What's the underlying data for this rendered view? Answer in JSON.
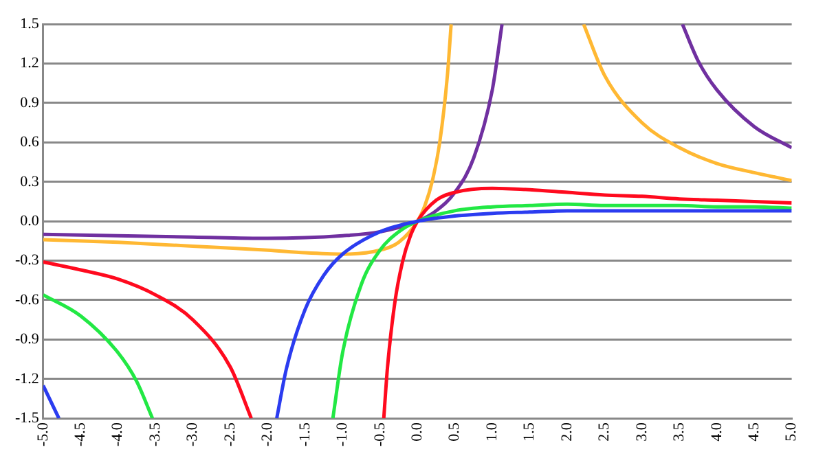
{
  "chart_data": {
    "type": "line",
    "series": [
      {
        "color": "#2b3cf0",
        "x": [
          -5,
          -4.79,
          null,
          -1.88,
          -1.75,
          -1.5,
          -1.25,
          -1,
          -0.5,
          0,
          0.5,
          1,
          1.5,
          2,
          2.5,
          3,
          3.5,
          4,
          4.5,
          5
        ],
        "values": [
          -1.25,
          -1.5,
          null,
          -1.5,
          -1.12,
          -0.67,
          -0.41,
          -0.25,
          -0.08,
          0,
          0.04,
          0.06,
          0.07,
          0.08,
          0.08,
          0.08,
          0.08,
          0.08,
          0.08,
          0.08
        ]
      },
      {
        "color": "#22e844",
        "x": [
          -5,
          -4.5,
          -4,
          -3.75,
          -3.54,
          null,
          -1.13,
          -1,
          -0.75,
          -0.5,
          -0.25,
          0,
          0.5,
          1,
          1.5,
          2,
          2.5,
          3,
          3.5,
          4,
          4.5,
          5
        ],
        "values": [
          -0.56,
          -0.72,
          -1,
          -1.22,
          -1.5,
          null,
          -1.5,
          -1,
          -0.48,
          -0.22,
          -0.08,
          0,
          0.08,
          0.11,
          0.12,
          0.13,
          0.12,
          0.12,
          0.12,
          0.11,
          0.11,
          0.1
        ]
      },
      {
        "color": "#ff0a1e",
        "x": [
          -5,
          -4.5,
          -4,
          -3.5,
          -3,
          -2.5,
          -2.22,
          null,
          -0.45,
          -0.4,
          -0.3,
          -0.2,
          -0.1,
          0,
          0.25,
          0.5,
          1,
          1.5,
          2,
          2.5,
          3,
          3.5,
          4,
          4.5,
          5
        ],
        "values": [
          -0.31,
          -0.37,
          -0.44,
          -0.56,
          -0.75,
          -1.11,
          -1.5,
          null,
          -1.5,
          -1.11,
          -0.61,
          -0.31,
          -0.12,
          0,
          0.16,
          0.22,
          0.25,
          0.24,
          0.22,
          0.2,
          0.19,
          0.17,
          0.16,
          0.15,
          0.14
        ]
      },
      {
        "color": "#ffb833",
        "x": [
          -5,
          -4,
          -3,
          -2,
          -1.5,
          -1,
          -0.5,
          -0.25,
          0,
          0.1,
          0.2,
          0.3,
          0.4,
          0.45,
          null,
          2.22,
          2.5,
          3,
          3.5,
          4,
          4.5,
          5
        ],
        "values": [
          -0.14,
          -0.16,
          -0.19,
          -0.22,
          -0.24,
          -0.25,
          -0.22,
          -0.16,
          0,
          0.12,
          0.31,
          0.61,
          1.11,
          1.5,
          null,
          1.5,
          1.11,
          0.75,
          0.56,
          0.44,
          0.37,
          0.31
        ]
      },
      {
        "color": "#7030a0",
        "x": [
          -5,
          -4,
          -3,
          -2,
          -1,
          -0.5,
          0,
          0.25,
          0.5,
          0.75,
          1,
          1.13,
          null,
          3.54,
          3.75,
          4,
          4.5,
          5
        ],
        "values": [
          -0.1,
          -0.11,
          -0.12,
          -0.13,
          -0.11,
          -0.08,
          0,
          0.08,
          0.22,
          0.48,
          1,
          1.5,
          null,
          1.5,
          1.22,
          1,
          0.72,
          0.56
        ]
      }
    ],
    "xlim": [
      -5,
      5
    ],
    "xticks": [
      {
        "value": -5,
        "label": "-5.0"
      },
      -4.5,
      {
        "value": -4,
        "label": "-4.0"
      },
      -3.5,
      {
        "value": -3,
        "label": "-3.0"
      },
      -2.5,
      {
        "value": -2,
        "label": "-2.0"
      },
      -1.5,
      {
        "value": -1,
        "label": "-1.0"
      },
      -0.5,
      {
        "value": 0,
        "label": "0.0"
      },
      0.5,
      {
        "value": 1,
        "label": "1.0"
      },
      1.5,
      {
        "value": 2,
        "label": "2.0"
      },
      2.5,
      {
        "value": 3,
        "label": "3.0"
      },
      3.5,
      {
        "value": 4,
        "label": "4.0"
      },
      4.5,
      {
        "value": 5,
        "label": "5.0"
      }
    ],
    "ylim": [
      -1.5,
      1.5
    ],
    "yticks": [
      -1.5,
      -1.2,
      -0.9,
      -0.6,
      -0.3,
      {
        "value": 0,
        "label": "0.0"
      },
      0.3,
      0.6,
      0.9,
      1.2,
      1.5
    ],
    "grid": "y",
    "legend": false,
    "marker": "none",
    "line_style": "solid"
  }
}
